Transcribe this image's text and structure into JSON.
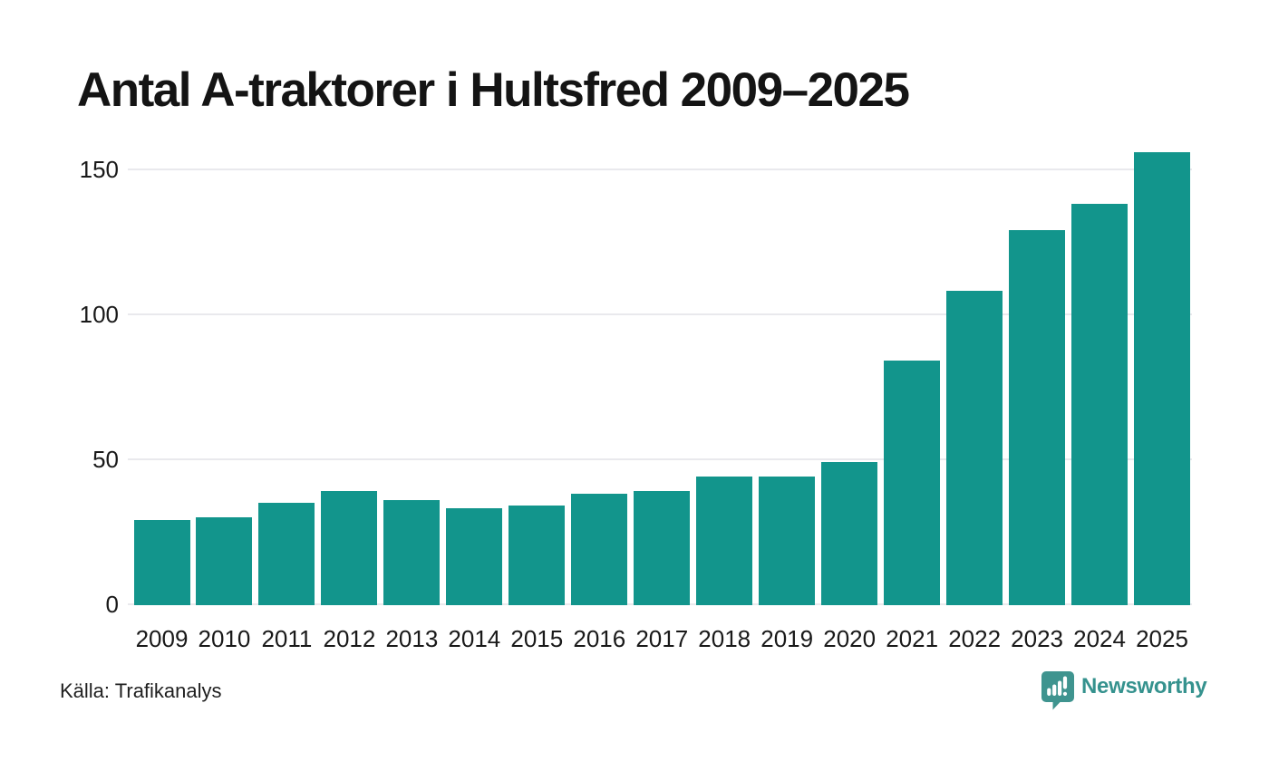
{
  "title": "Antal A-traktorer i Hultsfred 2009–2025",
  "source": "Källa: Trafikanalys",
  "branding": {
    "wordmark": "Newsworthy",
    "icon": "newsworthy-speech-bubble-bar-chart-icon"
  },
  "colors": {
    "background": "#ffffff",
    "bar": "#12958c",
    "grid": "#e9e9ed",
    "title": "#141414",
    "tick": "#191919",
    "source": "#1f1f1f",
    "logo_icon": "#3f948f",
    "logo_text": "#35928e"
  },
  "chart_data": {
    "type": "bar",
    "title": "Antal A-traktorer i Hultsfred 2009–2025",
    "categories": [
      "2009",
      "2010",
      "2011",
      "2012",
      "2013",
      "2014",
      "2015",
      "2016",
      "2017",
      "2018",
      "2019",
      "2020",
      "2021",
      "2022",
      "2023",
      "2024",
      "2025"
    ],
    "values": [
      29,
      30,
      35,
      39,
      36,
      33,
      34,
      38,
      39,
      44,
      44,
      49,
      84,
      108,
      129,
      138,
      156
    ],
    "xlabel": "",
    "ylabel": "",
    "yticks": [
      0,
      50,
      100,
      150
    ],
    "ylim": [
      0,
      156
    ],
    "grid": true,
    "legend": false,
    "bar_color": "#12958c"
  }
}
